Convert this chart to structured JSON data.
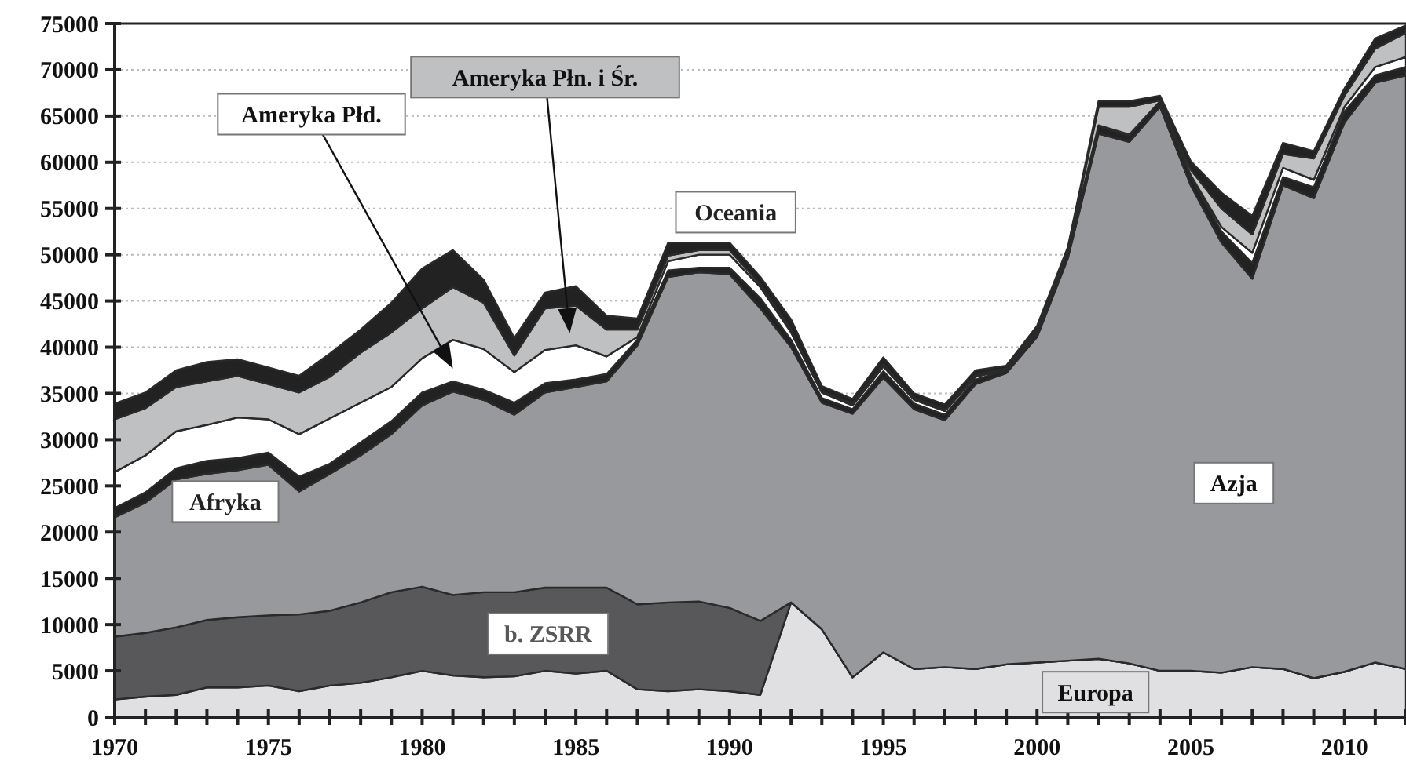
{
  "chart_data": {
    "type": "area",
    "stacked": true,
    "grid": "y",
    "x": [
      1970,
      1971,
      1972,
      1973,
      1974,
      1975,
      1976,
      1977,
      1978,
      1979,
      1980,
      1981,
      1982,
      1983,
      1984,
      1985,
      1986,
      1987,
      1988,
      1989,
      1990,
      1991,
      1992,
      1993,
      1994,
      1995,
      1996,
      1997,
      1998,
      1999,
      2000,
      2001,
      2002,
      2003,
      2004,
      2005,
      2006,
      2007,
      2008,
      2009,
      2010,
      2011,
      2012
    ],
    "xlim": [
      1970,
      2012
    ],
    "ylim": [
      0,
      75000
    ],
    "xticks": [
      1970,
      {
        "value": 1971,
        "label": null
      },
      {
        "value": 1972,
        "label": null
      },
      {
        "value": 1973,
        "label": null
      },
      {
        "value": 1974,
        "label": null
      },
      1975,
      {
        "value": 1976,
        "label": null
      },
      {
        "value": 1977,
        "label": null
      },
      {
        "value": 1978,
        "label": null
      },
      {
        "value": 1979,
        "label": null
      },
      1980,
      {
        "value": 1981,
        "label": null
      },
      {
        "value": 1982,
        "label": null
      },
      {
        "value": 1983,
        "label": null
      },
      {
        "value": 1984,
        "label": null
      },
      1985,
      {
        "value": 1986,
        "label": null
      },
      {
        "value": 1987,
        "label": null
      },
      {
        "value": 1988,
        "label": null
      },
      {
        "value": 1989,
        "label": null
      },
      1990,
      {
        "value": 1991,
        "label": null
      },
      {
        "value": 1992,
        "label": null
      },
      {
        "value": 1993,
        "label": null
      },
      {
        "value": 1994,
        "label": null
      },
      1995,
      {
        "value": 1996,
        "label": null
      },
      {
        "value": 1997,
        "label": null
      },
      {
        "value": 1998,
        "label": null
      },
      {
        "value": 1999,
        "label": null
      },
      2000,
      {
        "value": 2001,
        "label": null
      },
      {
        "value": 2002,
        "label": null
      },
      {
        "value": 2003,
        "label": null
      },
      {
        "value": 2004,
        "label": null
      },
      2005,
      {
        "value": 2006,
        "label": null
      },
      {
        "value": 2007,
        "label": null
      },
      {
        "value": 2008,
        "label": null
      },
      {
        "value": 2009,
        "label": null
      },
      2010,
      {
        "value": 2011,
        "label": null
      },
      {
        "value": 2012,
        "label": null
      }
    ],
    "yticks": [
      0,
      5000,
      10000,
      15000,
      20000,
      25000,
      30000,
      35000,
      40000,
      45000,
      50000,
      55000,
      60000,
      65000,
      70000,
      75000
    ],
    "series": [
      {
        "name": "Europa",
        "color": "#e0e0e2",
        "values": [
          1900,
          2200,
          2400,
          3200,
          3200,
          3400,
          2800,
          3400,
          3700,
          4300,
          5000,
          4500,
          4300,
          4400,
          5000,
          4700,
          5000,
          3000,
          2800,
          3000,
          2800,
          2400,
          12400,
          9500,
          4300,
          7000,
          5200,
          5400,
          5200,
          5700,
          5900,
          6100,
          6300,
          5800,
          5000,
          5000,
          4800,
          5400,
          5200,
          4200,
          4900,
          5900,
          5200
        ]
      },
      {
        "name": "b. ZSRR",
        "color": "#58585a",
        "values": [
          6800,
          6900,
          7300,
          7300,
          7600,
          7600,
          8300,
          8100,
          8700,
          9200,
          9100,
          8700,
          9200,
          9100,
          9000,
          9300,
          9000,
          9200,
          9600,
          9500,
          9000,
          8000,
          0,
          0,
          0,
          0,
          0,
          0,
          0,
          0,
          0,
          0,
          0,
          0,
          0,
          0,
          0,
          0,
          0,
          0,
          0,
          0,
          0
        ]
      },
      {
        "name": "Azja",
        "color": "#98999d",
        "values": [
          12900,
          14100,
          16000,
          15800,
          15900,
          16300,
          13300,
          14800,
          15900,
          17100,
          19600,
          22000,
          20800,
          19200,
          21100,
          21700,
          22300,
          28000,
          35200,
          35600,
          36100,
          33800,
          27600,
          24500,
          28500,
          29700,
          28100,
          26700,
          30800,
          31500,
          35200,
          43500,
          56800,
          56400,
          61000,
          52500,
          46500,
          42000,
          52300,
          51900,
          59400,
          62700,
          64200
        ]
      },
      {
        "name": "Afryka",
        "color": "#222222",
        "values": [
          1000,
          1100,
          1200,
          1400,
          1300,
          1300,
          1600,
          1100,
          1400,
          1400,
          1400,
          1100,
          1100,
          1300,
          1000,
          800,
          800,
          600,
          700,
          500,
          700,
          1100,
          800,
          500,
          500,
          700,
          600,
          600,
          500,
          300,
          400,
          400,
          800,
          700,
          500,
          900,
          1200,
          1700,
          900,
          1200,
          1200,
          800,
          900
        ]
      },
      {
        "name": "Ameryka Płd.",
        "color": "#ffffff",
        "values": [
          3900,
          4000,
          4000,
          3900,
          4400,
          3600,
          4600,
          4900,
          4300,
          3700,
          3700,
          4500,
          4400,
          3300,
          3600,
          3700,
          1900,
          300,
          1000,
          1400,
          1400,
          1200,
          800,
          600,
          400,
          500,
          400,
          400,
          300,
          100,
          200,
          200,
          100,
          100,
          100,
          200,
          500,
          1100,
          1000,
          800,
          500,
          900,
          1100
        ]
      },
      {
        "name": "Ameryka Płn. i Śr.",
        "color": "#bfc0c2",
        "values": [
          5700,
          5100,
          4800,
          4700,
          4500,
          3800,
          4500,
          4500,
          5400,
          5900,
          5400,
          5700,
          5000,
          1800,
          4500,
          4300,
          2900,
          800,
          600,
          500,
          500,
          300,
          300,
          100,
          200,
          300,
          200,
          200,
          200,
          100,
          100,
          100,
          2000,
          3000,
          100,
          600,
          2000,
          2000,
          1500,
          2300,
          1200,
          2000,
          2600
        ]
      },
      {
        "name": "Oceania",
        "color": "#222222",
        "values": [
          1700,
          1700,
          1800,
          2100,
          1800,
          1800,
          1800,
          2500,
          2500,
          3200,
          4300,
          4000,
          2500,
          1900,
          1700,
          2100,
          1500,
          1200,
          1400,
          800,
          800,
          800,
          1100,
          600,
          500,
          700,
          500,
          500,
          500,
          300,
          500,
          500,
          600,
          600,
          500,
          900,
          1700,
          2000,
          1200,
          800,
          800,
          1100,
          800
        ]
      }
    ]
  }
}
